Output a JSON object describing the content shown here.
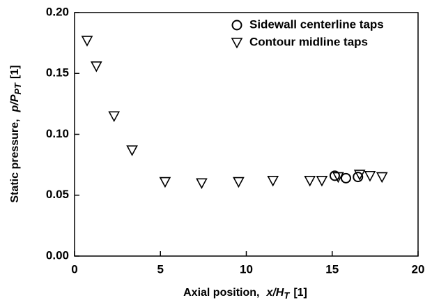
{
  "chart_data": {
    "type": "scatter",
    "x_label": {
      "text": "Axial position,",
      "var": "x/H",
      "sub": "T",
      "unit": "[1]"
    },
    "y_label": {
      "text": "Static pressure,",
      "var": "p/P",
      "sub": "PT",
      "unit": "[1]"
    },
    "xlim": [
      0,
      20
    ],
    "xticks": [
      0,
      5,
      10,
      15,
      20
    ],
    "ylim": [
      0,
      0.2
    ],
    "yticks": [
      {
        "value": 0,
        "label": "0.00"
      },
      {
        "value": 0.05,
        "label": "0.05"
      },
      {
        "value": 0.1,
        "label": "0.10"
      },
      {
        "value": 0.15,
        "label": "0.15"
      },
      {
        "value": 0.2,
        "label": "0.20"
      }
    ],
    "legend": "upper right",
    "series": [
      {
        "name": "Sidewall centerline taps",
        "marker": "circle",
        "color": "#000000",
        "x": [
          15.15,
          15.8,
          16.5
        ],
        "values": [
          0.066,
          0.064,
          0.065
        ]
      },
      {
        "name": "Contour midline taps",
        "marker": "triangle-down",
        "color": "#000000",
        "x": [
          0.73,
          1.27,
          2.3,
          3.35,
          5.27,
          7.4,
          9.55,
          11.55,
          13.7,
          14.4,
          15.35,
          16.6,
          17.2,
          17.9
        ],
        "values": [
          0.177,
          0.156,
          0.115,
          0.087,
          0.061,
          0.06,
          0.061,
          0.062,
          0.062,
          0.062,
          0.065,
          0.067,
          0.066,
          0.065
        ]
      }
    ]
  }
}
